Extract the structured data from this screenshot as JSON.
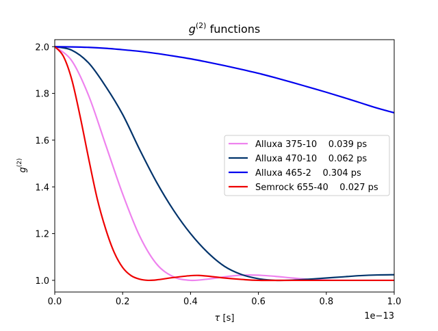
{
  "chart_data": {
    "type": "line",
    "title": {
      "main": "g",
      "sup": "(2)",
      "rest": " functions"
    },
    "xlabel": {
      "main": "τ",
      "rest": " [s]"
    },
    "ylabel": {
      "main": "g",
      "sup": "(2)"
    },
    "x_offset_label": "1e−13",
    "xlim": [
      0,
      1e-13
    ],
    "ylim": [
      0.95,
      2.03
    ],
    "xticks": [
      0,
      2e-14,
      4e-14,
      6e-14,
      8e-14,
      1e-13
    ],
    "xtick_labels": [
      "0.0",
      "0.2",
      "0.4",
      "0.6",
      "0.8",
      "1.0"
    ],
    "yticks": [
      1.0,
      1.2,
      1.4,
      1.6,
      1.8,
      2.0
    ],
    "ytick_labels": [
      "1.0",
      "1.2",
      "1.4",
      "1.6",
      "1.8",
      "2.0"
    ],
    "grid": false,
    "legend_position": "center-right",
    "series": [
      {
        "name": "Alluxa 375-10    0.039 ps",
        "color": "#ee82ee",
        "x": [
          0,
          5e-15,
          1e-14,
          1.5e-14,
          2e-14,
          2.5e-14,
          3e-14,
          3.5e-14,
          4e-14,
          4.5e-14,
          5e-14,
          5.5e-14,
          6e-14,
          6.5e-14,
          7e-14,
          7.5e-14,
          8e-14,
          8.5e-14,
          9e-14,
          9.5e-14,
          1e-13
        ],
        "y": [
          2.0,
          1.94,
          1.79,
          1.58,
          1.37,
          1.19,
          1.07,
          1.015,
          1.0,
          1.005,
          1.015,
          1.022,
          1.022,
          1.017,
          1.01,
          1.004,
          1.001,
          1.0,
          1.0,
          1.0,
          1.0
        ]
      },
      {
        "name": "Alluxa 470-10    0.062 ps",
        "color": "#00336b",
        "x": [
          0,
          5e-15,
          1e-14,
          1.5e-14,
          2e-14,
          2.5e-14,
          3e-14,
          3.5e-14,
          4e-14,
          4.5e-14,
          5e-14,
          5.5e-14,
          6e-14,
          6.5e-14,
          7e-14,
          7.5e-14,
          8e-14,
          8.5e-14,
          9e-14,
          9.5e-14,
          1e-13
        ],
        "y": [
          2.0,
          1.985,
          1.93,
          1.83,
          1.71,
          1.56,
          1.42,
          1.3,
          1.2,
          1.12,
          1.06,
          1.025,
          1.007,
          1.0,
          1.001,
          1.005,
          1.01,
          1.015,
          1.02,
          1.023,
          1.024
        ]
      },
      {
        "name": "Alluxa 465-2    0.304 ps",
        "color": "#0000ee",
        "x": [
          0,
          5e-15,
          1e-14,
          1.5e-14,
          2e-14,
          2.5e-14,
          3e-14,
          3.5e-14,
          4e-14,
          4.5e-14,
          5e-14,
          5.5e-14,
          6e-14,
          6.5e-14,
          7e-14,
          7.5e-14,
          8e-14,
          8.5e-14,
          9e-14,
          9.5e-14,
          1e-13
        ],
        "y": [
          2.0,
          1.999,
          1.997,
          1.993,
          1.987,
          1.98,
          1.971,
          1.96,
          1.948,
          1.934,
          1.919,
          1.903,
          1.886,
          1.867,
          1.847,
          1.826,
          1.805,
          1.783,
          1.76,
          1.737,
          1.717
        ]
      },
      {
        "name": "Semrock 655-40    0.027 ps",
        "color": "#ee0000",
        "x": [
          0,
          2.5e-15,
          5e-15,
          7.5e-15,
          1e-14,
          1.25e-14,
          1.5e-14,
          1.75e-14,
          2e-14,
          2.25e-14,
          2.5e-14,
          2.75e-14,
          3e-14,
          3.5e-14,
          4e-14,
          4.25e-14,
          4.5e-14,
          5e-14,
          5.5e-14,
          6e-14,
          7e-14,
          8e-14,
          9e-14,
          1e-13
        ],
        "y": [
          2.0,
          1.96,
          1.86,
          1.7,
          1.52,
          1.35,
          1.22,
          1.12,
          1.055,
          1.02,
          1.005,
          1.0,
          1.002,
          1.012,
          1.02,
          1.021,
          1.018,
          1.01,
          1.004,
          1.0,
          1.0,
          1.0,
          1.0,
          1.0
        ]
      }
    ]
  }
}
